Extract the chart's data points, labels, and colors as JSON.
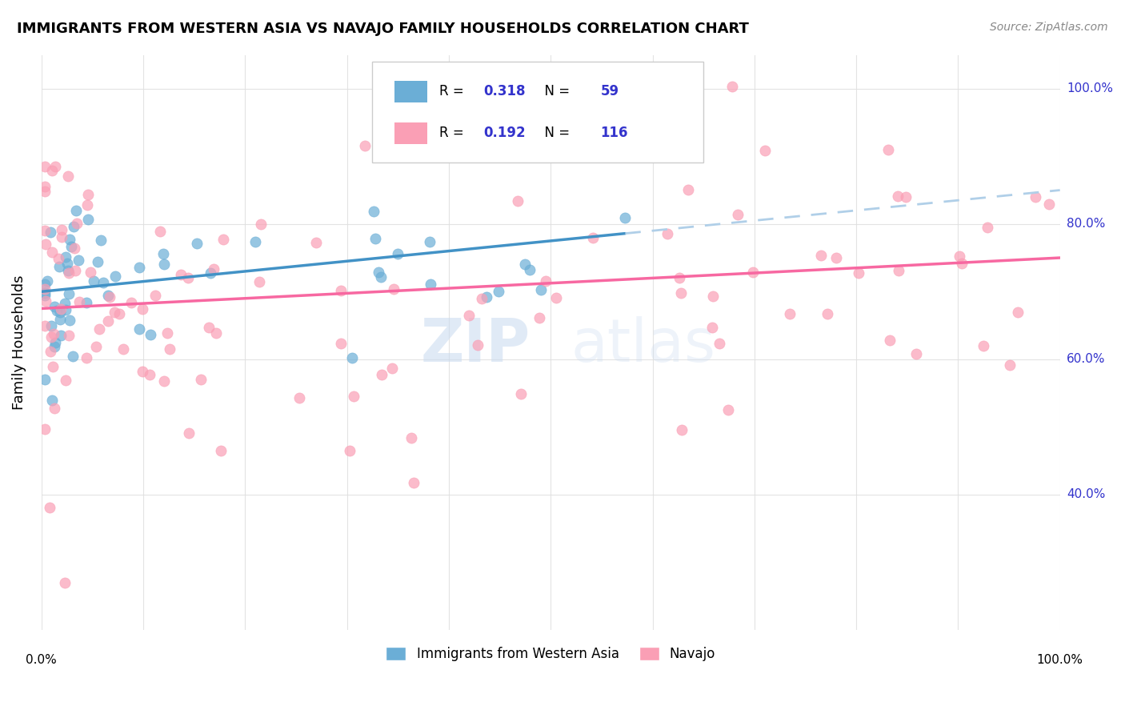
{
  "title": "IMMIGRANTS FROM WESTERN ASIA VS NAVAJO FAMILY HOUSEHOLDS CORRELATION CHART",
  "source": "Source: ZipAtlas.com",
  "ylabel": "Family Households",
  "legend_label_blue": "Immigrants from Western Asia",
  "legend_label_pink": "Navajo",
  "blue_color": "#6baed6",
  "pink_color": "#fa9fb5",
  "blue_line_color": "#4292c6",
  "pink_line_color": "#f768a1",
  "blue_dash_color": "#b0cfe8",
  "text_blue": "#3333cc",
  "background": "#ffffff",
  "blue_slope": 0.15,
  "blue_intercept": 70.0,
  "pink_slope": 0.075,
  "pink_intercept": 67.5,
  "xlim": [
    0,
    100
  ],
  "ylim": [
    20,
    105
  ],
  "n_blue": 59,
  "n_pink": 116,
  "R_blue": "0.318",
  "R_pink": "0.192",
  "N_blue": "59",
  "N_pink": "116"
}
